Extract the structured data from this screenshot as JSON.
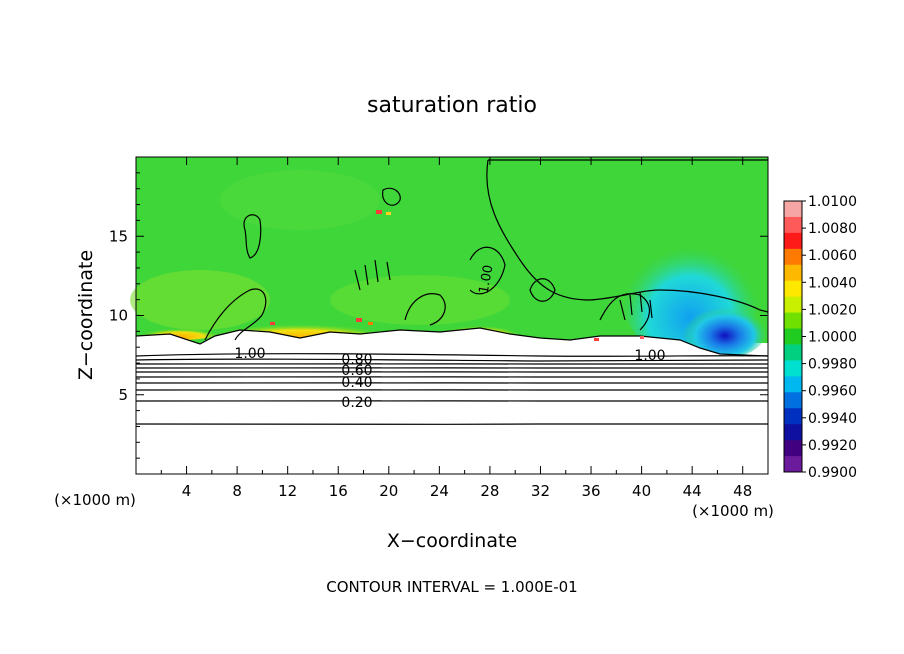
{
  "chart_data": {
    "type": "heatmap",
    "title": "saturation ratio",
    "xlabel": "X−coordinate",
    "ylabel": "Z−coordinate",
    "x_unit_left": "(×1000 m)",
    "x_unit_right": "(×1000 m)",
    "xlim": [
      0,
      50
    ],
    "ylim": [
      0,
      20
    ],
    "x_ticks": [
      "4",
      "8",
      "12",
      "16",
      "20",
      "24",
      "28",
      "32",
      "36",
      "40",
      "44",
      "48"
    ],
    "y_ticks": [
      "5",
      "10",
      "15"
    ],
    "colorbar": {
      "labels": [
        "1.0100",
        "1.0080",
        "1.0060",
        "1.0040",
        "1.0020",
        "1.0000",
        "0.9980",
        "0.9960",
        "0.9940",
        "0.9920",
        "0.9900"
      ],
      "colors": [
        "#f7a6a6",
        "#ff5a5a",
        "#ff1a1a",
        "#ff7a00",
        "#ffb800",
        "#ffe800",
        "#c8f000",
        "#70e000",
        "#20cc20",
        "#00d080",
        "#00e0d0",
        "#00b8f0",
        "#0070e0",
        "#0030c0",
        "#1010a0",
        "#400080",
        "#6a1a9a"
      ]
    },
    "contour_labels": [
      "1.00",
      "1.00",
      "1.00",
      "0.80",
      "0.60",
      "0.40",
      "0.20"
    ],
    "footer": "CONTOUR INTERVAL = 1.000E-01"
  }
}
